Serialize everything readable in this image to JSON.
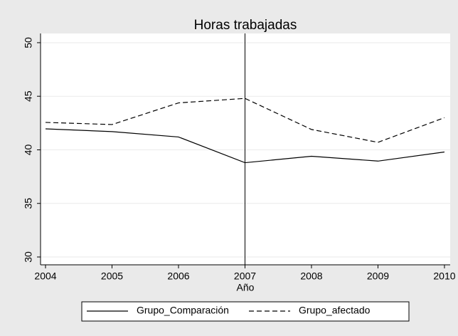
{
  "chart_data": {
    "type": "line",
    "title": "Horas trabajadas",
    "x_label": "Año",
    "x": [
      2004,
      2005,
      2006,
      2007,
      2008,
      2009,
      2010
    ],
    "series": [
      {
        "name": "Grupo_Comparación",
        "color": "#000000",
        "dash": "solid",
        "values": [
          41.96,
          41.7,
          41.2,
          38.8,
          39.4,
          38.95,
          39.8
        ]
      },
      {
        "name": "Grupo_afectado",
        "color": "#000000",
        "dash": "dashed",
        "values": [
          42.56,
          42.36,
          44.38,
          44.8,
          41.9,
          40.7,
          43.0
        ]
      }
    ],
    "xlim": [
      2003.925,
      2010.086
    ],
    "xticks": [
      2004,
      2005,
      2006,
      2007,
      2008,
      2009,
      2010
    ],
    "ylim": [
      29.27,
      50.86
    ],
    "yticks": [
      30,
      35,
      40,
      45,
      50
    ],
    "xline": 2007,
    "grid": true,
    "legend": "bottom"
  }
}
